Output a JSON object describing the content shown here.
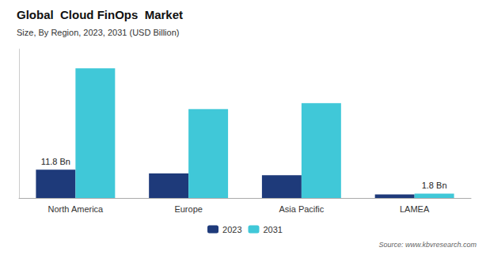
{
  "chart_data": {
    "type": "bar",
    "title": "Global  Cloud FinOps  Market",
    "subtitle": "Size, By Region, 2023, 2031 (USD Billion)",
    "source": "Source: www.kbvresearch.com",
    "categories": [
      "North America",
      "Europe",
      "Asia Pacific",
      "LAMEA"
    ],
    "series": [
      {
        "name": "2023",
        "color": "#1e3a7a",
        "values": [
          11.8,
          10.2,
          9.5,
          1.5
        ]
      },
      {
        "name": "2031",
        "color": "#40c8d8",
        "values": [
          54.0,
          37.0,
          39.5,
          1.8
        ]
      }
    ],
    "annotations": [
      {
        "text": "11.8 Bn",
        "series": "2023",
        "category": "North America"
      },
      {
        "text": "1.8 Bn",
        "series": "2031",
        "category": "LAMEA"
      }
    ],
    "ylim": [
      0,
      62
    ],
    "grid": false,
    "legend": "bottom",
    "tick_labels": "x"
  }
}
